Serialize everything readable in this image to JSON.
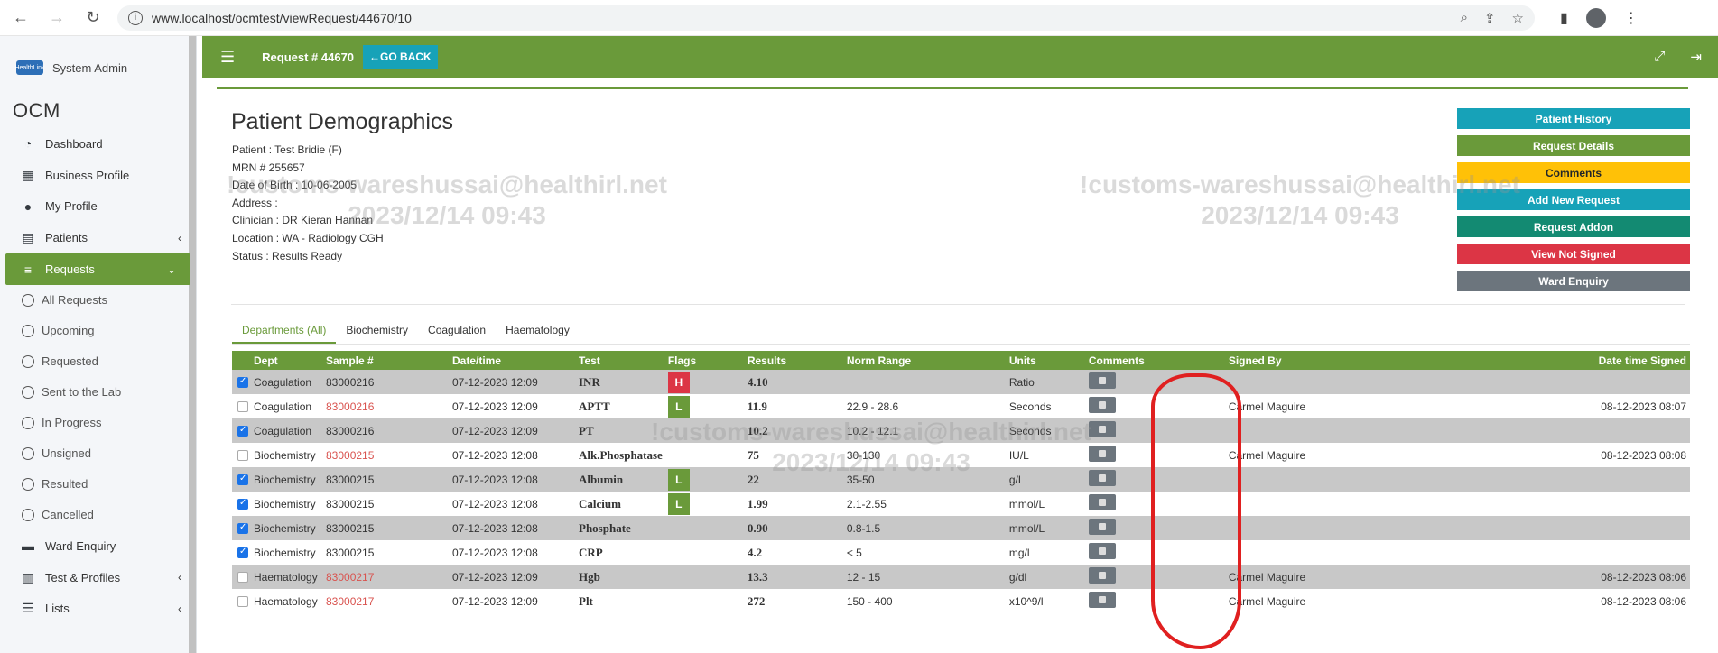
{
  "browser": {
    "url": "www.localhost/ocmtest/viewRequest/44670/10"
  },
  "sidebar": {
    "user_name": "System Admin",
    "logo_text": "HealthLink",
    "brand": "OCM",
    "items": [
      {
        "label": "Dashboard"
      },
      {
        "label": "Business Profile"
      },
      {
        "label": "My Profile"
      },
      {
        "label": "Patients"
      },
      {
        "label": "Requests"
      },
      {
        "label": "All Requests"
      },
      {
        "label": "Upcoming"
      },
      {
        "label": "Requested"
      },
      {
        "label": "Sent to the Lab"
      },
      {
        "label": "In Progress"
      },
      {
        "label": "Unsigned"
      },
      {
        "label": "Resulted"
      },
      {
        "label": "Cancelled"
      },
      {
        "label": "Ward Enquiry"
      },
      {
        "label": "Test & Profiles"
      },
      {
        "label": "Lists"
      }
    ]
  },
  "header": {
    "request_label": "Request # 44670",
    "go_back": "GO BACK"
  },
  "patient": {
    "title": "Patient Demographics",
    "patient": "Patient : Test Bridie (F)",
    "mrn": "MRN # 255657",
    "dob": "Date of Birth : 10-06-2005",
    "address": "Address :",
    "clinician": "Clinician : DR Kieran Hannan",
    "location": "Location : WA - Radiology CGH",
    "status": "Status : Results Ready"
  },
  "actions": [
    {
      "label": "Patient History",
      "color": "#17a2b8",
      "text": "#ffffff"
    },
    {
      "label": "Request Details",
      "color": "#6a9a3a",
      "text": "#ffffff"
    },
    {
      "label": "Comments",
      "color": "#ffc107",
      "text": "#212529"
    },
    {
      "label": "Add New Request",
      "color": "#17a2b8",
      "text": "#ffffff"
    },
    {
      "label": "Request Addon",
      "color": "#138a72",
      "text": "#ffffff"
    },
    {
      "label": "View Not Signed",
      "color": "#dc3545",
      "text": "#ffffff"
    },
    {
      "label": "Ward Enquiry",
      "color": "#6c757d",
      "text": "#ffffff"
    }
  ],
  "tabs": [
    "Departments (All)",
    "Biochemistry",
    "Coagulation",
    "Haematology"
  ],
  "table": {
    "headers": [
      "",
      "Dept",
      "Sample #",
      "Date/time",
      "Test",
      "Flags",
      "Results",
      "Norm Range",
      "Units",
      "Comments",
      "Signed By",
      "Date time Signed"
    ],
    "rows": [
      {
        "checked": true,
        "dept": "Coagulation",
        "sample": "83000216",
        "sample_red": false,
        "datetime": "07-12-2023 12:09",
        "test": "INR",
        "flag": "H",
        "result": "4.10",
        "range": "",
        "units": "Ratio",
        "signed_by": "",
        "signed_at": ""
      },
      {
        "checked": false,
        "dept": "Coagulation",
        "sample": "83000216",
        "sample_red": true,
        "datetime": "07-12-2023 12:09",
        "test": "APTT",
        "flag": "L",
        "result": "11.9",
        "range": "22.9 - 28.6",
        "units": "Seconds",
        "signed_by": "Carmel Maguire",
        "signed_at": "08-12-2023 08:07"
      },
      {
        "checked": true,
        "dept": "Coagulation",
        "sample": "83000216",
        "sample_red": false,
        "datetime": "07-12-2023 12:09",
        "test": "PT",
        "flag": "",
        "result": "10.2",
        "range": "10.2 - 12.1",
        "units": "Seconds",
        "signed_by": "",
        "signed_at": ""
      },
      {
        "checked": false,
        "dept": "Biochemistry",
        "sample": "83000215",
        "sample_red": true,
        "datetime": "07-12-2023 12:08",
        "test": "Alk.Phosphatase",
        "flag": "",
        "result": "75",
        "range": "30-130",
        "units": "IU/L",
        "signed_by": "Carmel Maguire",
        "signed_at": "08-12-2023 08:08"
      },
      {
        "checked": true,
        "dept": "Biochemistry",
        "sample": "83000215",
        "sample_red": false,
        "datetime": "07-12-2023 12:08",
        "test": "Albumin",
        "flag": "L",
        "result": "22",
        "range": "35-50",
        "units": "g/L",
        "signed_by": "",
        "signed_at": ""
      },
      {
        "checked": true,
        "dept": "Biochemistry",
        "sample": "83000215",
        "sample_red": false,
        "datetime": "07-12-2023 12:08",
        "test": "Calcium",
        "flag": "L",
        "result": "1.99",
        "range": "2.1-2.55",
        "units": "mmol/L",
        "signed_by": "",
        "signed_at": ""
      },
      {
        "checked": true,
        "dept": "Biochemistry",
        "sample": "83000215",
        "sample_red": false,
        "datetime": "07-12-2023 12:08",
        "test": "Phosphate",
        "flag": "",
        "result": "0.90",
        "range": "0.8-1.5",
        "units": "mmol/L",
        "signed_by": "",
        "signed_at": ""
      },
      {
        "checked": true,
        "dept": "Biochemistry",
        "sample": "83000215",
        "sample_red": false,
        "datetime": "07-12-2023 12:08",
        "test": "CRP",
        "flag": "",
        "result": "4.2",
        "range": "< 5",
        "units": "mg/l",
        "signed_by": "",
        "signed_at": ""
      },
      {
        "checked": false,
        "dept": "Haematology",
        "sample": "83000217",
        "sample_red": true,
        "datetime": "07-12-2023 12:09",
        "test": "Hgb",
        "flag": "",
        "result": "13.3",
        "range": "12 - 15",
        "units": "g/dl",
        "signed_by": "Carmel Maguire",
        "signed_at": "08-12-2023 08:06"
      },
      {
        "checked": false,
        "dept": "Haematology",
        "sample": "83000217",
        "sample_red": true,
        "datetime": "07-12-2023 12:09",
        "test": "Plt",
        "flag": "",
        "result": "272",
        "range": "150 - 400",
        "units": "x10^9/l",
        "signed_by": "Carmel Maguire",
        "signed_at": "08-12-2023 08:06"
      }
    ]
  },
  "watermark": {
    "line1": "!customs-wareshussai@healthirl.net",
    "line2": "2023/12/14 09:43"
  }
}
